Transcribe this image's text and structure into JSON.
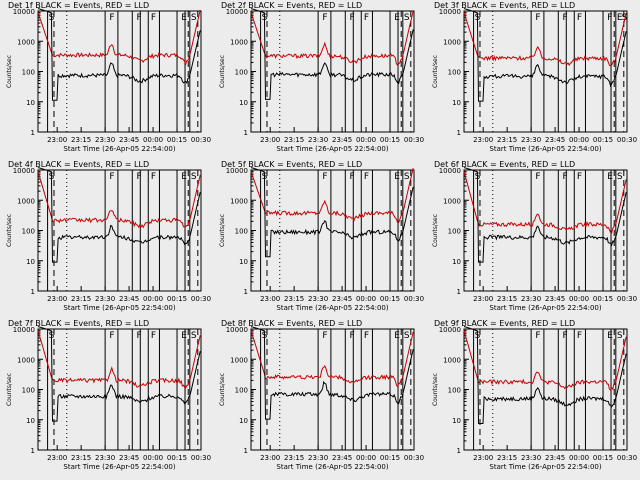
{
  "chart_data": {
    "type": "line",
    "xlabel": "Start Time (26-Apr-05 22:54:00)",
    "ylabel": "Counts/sec",
    "x_ticks": [
      "23:00",
      "23:15",
      "23:30",
      "23:45",
      "00:00",
      "00:15",
      "00:30"
    ],
    "y_ticks": [
      "1",
      "10",
      "100",
      "1000",
      "10000"
    ],
    "ylim": [
      1,
      10000
    ],
    "yscale": "log",
    "colors": {
      "events": "#000000",
      "lld": "#cc0000"
    },
    "panels": [
      {
        "title": "Det 1f BLACK = Events, RED = LLD",
        "flags": [
          "S",
          "F",
          "F",
          "F",
          "E",
          "S"
        ],
        "lld_base": 350,
        "events_base": 75
      },
      {
        "title": "Det 2f BLACK = Events, RED = LLD",
        "flags": [
          "S",
          "F",
          "F",
          "F",
          "E",
          "S"
        ],
        "lld_base": 330,
        "events_base": 80
      },
      {
        "title": "Det 3f BLACK = Events, RED = LLD",
        "flags": [
          "S",
          "F",
          "F",
          "F",
          "F",
          "E",
          "S"
        ],
        "lld_base": 280,
        "events_base": 70
      },
      {
        "title": "Det 4f BLACK = Events, RED = LLD",
        "flags": [
          "S",
          "F",
          "F",
          "F",
          "E",
          "S"
        ],
        "lld_base": 220,
        "events_base": 60
      },
      {
        "title": "Det 5f BLACK = Events, RED = LLD",
        "flags": [
          "S",
          "F",
          "F",
          "F",
          "E",
          "S"
        ],
        "lld_base": 380,
        "events_base": 90
      },
      {
        "title": "Det 6f BLACK = Events, RED = LLD",
        "flags": [
          "S",
          "F",
          "F",
          "F",
          "E",
          "S"
        ],
        "lld_base": 160,
        "events_base": 60
      },
      {
        "title": "Det 7f BLACK = Events, RED = LLD",
        "flags": [
          "S",
          "F",
          "F",
          "F",
          "E",
          "S"
        ],
        "lld_base": 200,
        "events_base": 60
      },
      {
        "title": "Det 8f BLACK = Events, RED = LLD",
        "flags": [
          "S",
          "F",
          "F",
          "F",
          "E",
          "S"
        ],
        "lld_base": 260,
        "events_base": 70
      },
      {
        "title": "Det 9f BLACK = Events, RED = LLD",
        "flags": [
          "S",
          "F",
          "F",
          "F",
          "E",
          "S"
        ],
        "lld_base": 180,
        "events_base": 50
      }
    ]
  }
}
